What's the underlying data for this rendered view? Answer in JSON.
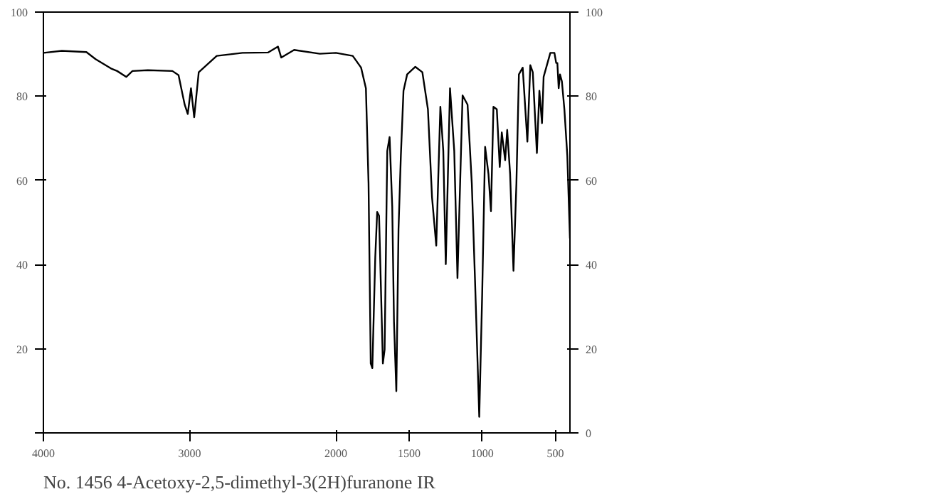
{
  "chart_data": {
    "type": "line",
    "title": "No. 1456 4-Acetoxy-2,5-dimethyl-3(2H)furanone IR",
    "x": [
      4000,
      3874,
      3706,
      3643,
      3538,
      3496,
      3433,
      3391,
      3286,
      3118,
      3076,
      3034,
      3013,
      2991,
      2969,
      2938,
      2815,
      2639,
      2463,
      2396,
      2374,
      2286,
      2110,
      2000,
      1885,
      1828,
      1795,
      1777,
      1762,
      1751,
      1731,
      1718,
      1705,
      1679,
      1667,
      1649,
      1633,
      1615,
      1603,
      1587,
      1572,
      1556,
      1538,
      1513,
      1457,
      1409,
      1371,
      1343,
      1314,
      1286,
      1266,
      1249,
      1220,
      1191,
      1169,
      1134,
      1100,
      1071,
      1049,
      1020,
      1000,
      980,
      957,
      940,
      923,
      900,
      880,
      866,
      843,
      829,
      809,
      786,
      766,
      749,
      723,
      691,
      671,
      654,
      626,
      609,
      591,
      580,
      534,
      506,
      494,
      486,
      477,
      468,
      455,
      438,
      418,
      400
    ],
    "series": [
      {
        "color": "#000000",
        "values": [
          90.3,
          90.8,
          90.5,
          88.8,
          86.6,
          86.0,
          84.6,
          86.0,
          86.2,
          86.0,
          85.0,
          78.0,
          75.8,
          81.9,
          75.0,
          85.7,
          89.6,
          90.3,
          90.4,
          91.8,
          89.2,
          91.0,
          90.1,
          90.3,
          89.6,
          86.8,
          81.9,
          59.3,
          16.5,
          15.4,
          41.8,
          52.5,
          51.6,
          16.5,
          19.8,
          67.0,
          70.3,
          53.8,
          26.4,
          9.9,
          48.4,
          65.9,
          81.3,
          85.2,
          87.0,
          85.7,
          76.9,
          56.0,
          44.5,
          77.5,
          67.0,
          40.1,
          81.9,
          67.0,
          36.8,
          80.2,
          78.0,
          59.3,
          36.3,
          3.8,
          33.0,
          68.0,
          61.5,
          52.7,
          77.5,
          76.9,
          63.2,
          71.4,
          64.8,
          72.0,
          61.5,
          38.5,
          59.3,
          85.2,
          86.8,
          69.2,
          87.4,
          85.7,
          66.5,
          81.3,
          73.6,
          84.6,
          90.3,
          90.3,
          87.9,
          87.9,
          81.9,
          85.2,
          83.5,
          76.9,
          65.9,
          46.2
        ]
      }
    ],
    "xlim": [
      4000,
      400
    ],
    "xticks": [
      4000,
      3000,
      2000,
      1500,
      1000,
      500
    ],
    "ylim": [
      0,
      100
    ],
    "yticks": [
      {
        "value": 0,
        "label": null
      },
      20,
      40,
      60,
      80,
      100
    ],
    "y2lim": [
      0,
      100
    ],
    "y2ticks": [
      0,
      20,
      40,
      60,
      80,
      100
    ],
    "grid": false,
    "marker": "none",
    "line_style": "solid"
  }
}
